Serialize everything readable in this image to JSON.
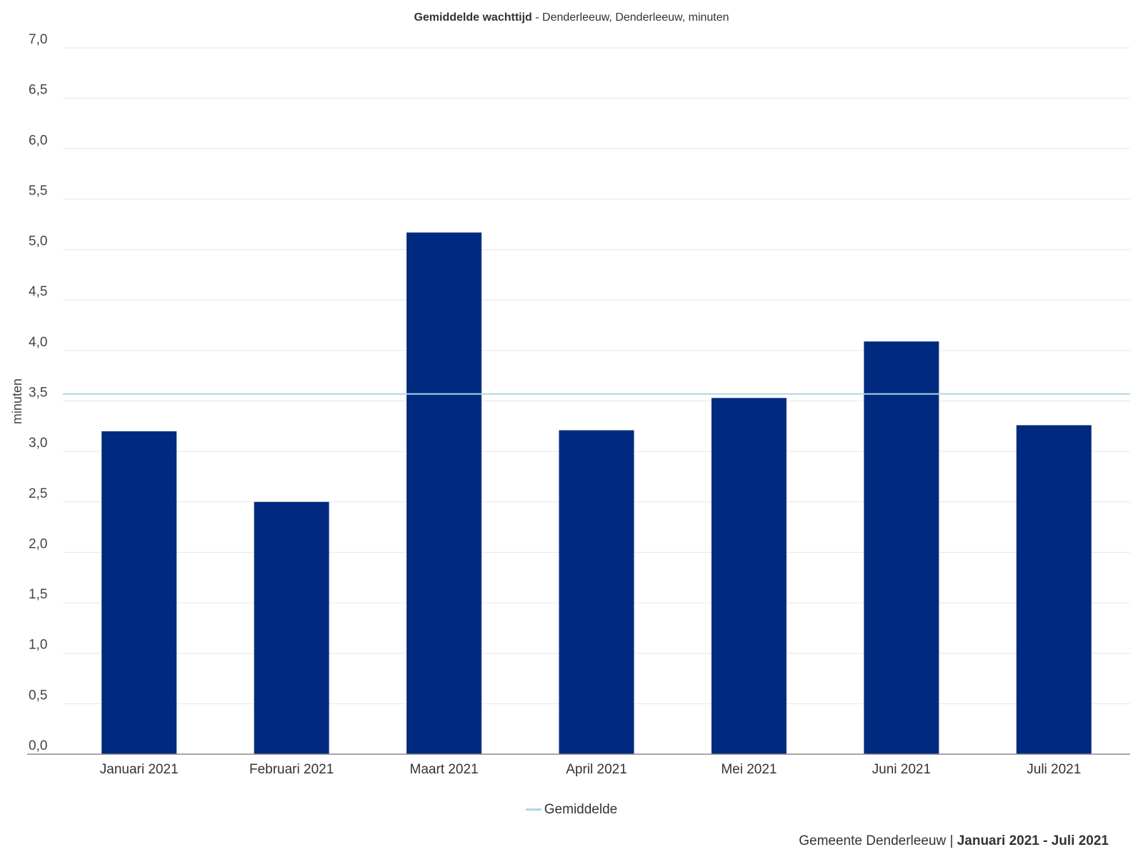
{
  "chart_data": {
    "type": "bar",
    "title_bold": "Gemiddelde wachttijd",
    "title_rest": " - Denderleeuw, Denderleeuw, minuten",
    "ylabel": "minuten",
    "xlabel": "",
    "ylim": [
      0,
      7
    ],
    "yticks": [
      "0,0",
      "0,5",
      "1,0",
      "1,5",
      "2,0",
      "2,5",
      "3,0",
      "3,5",
      "4,0",
      "4,5",
      "5,0",
      "5,5",
      "6,0",
      "6,5",
      "7,0"
    ],
    "categories": [
      "Januari 2021",
      "Februari 2021",
      "Maart 2021",
      "April 2021",
      "Mei 2021",
      "Juni 2021",
      "Juli 2021"
    ],
    "values": [
      3.2,
      2.5,
      5.17,
      3.21,
      3.53,
      4.09,
      3.26
    ],
    "reference_line": {
      "name": "Gemiddelde",
      "value": 3.57
    },
    "bar_color": "#002a7f",
    "line_color": "#add8e6",
    "grid": true,
    "legend_position": "bottom"
  },
  "footer": {
    "source": "Gemeente Denderleeuw",
    "separator": " | ",
    "period": "Januari 2021 - Juli 2021"
  }
}
